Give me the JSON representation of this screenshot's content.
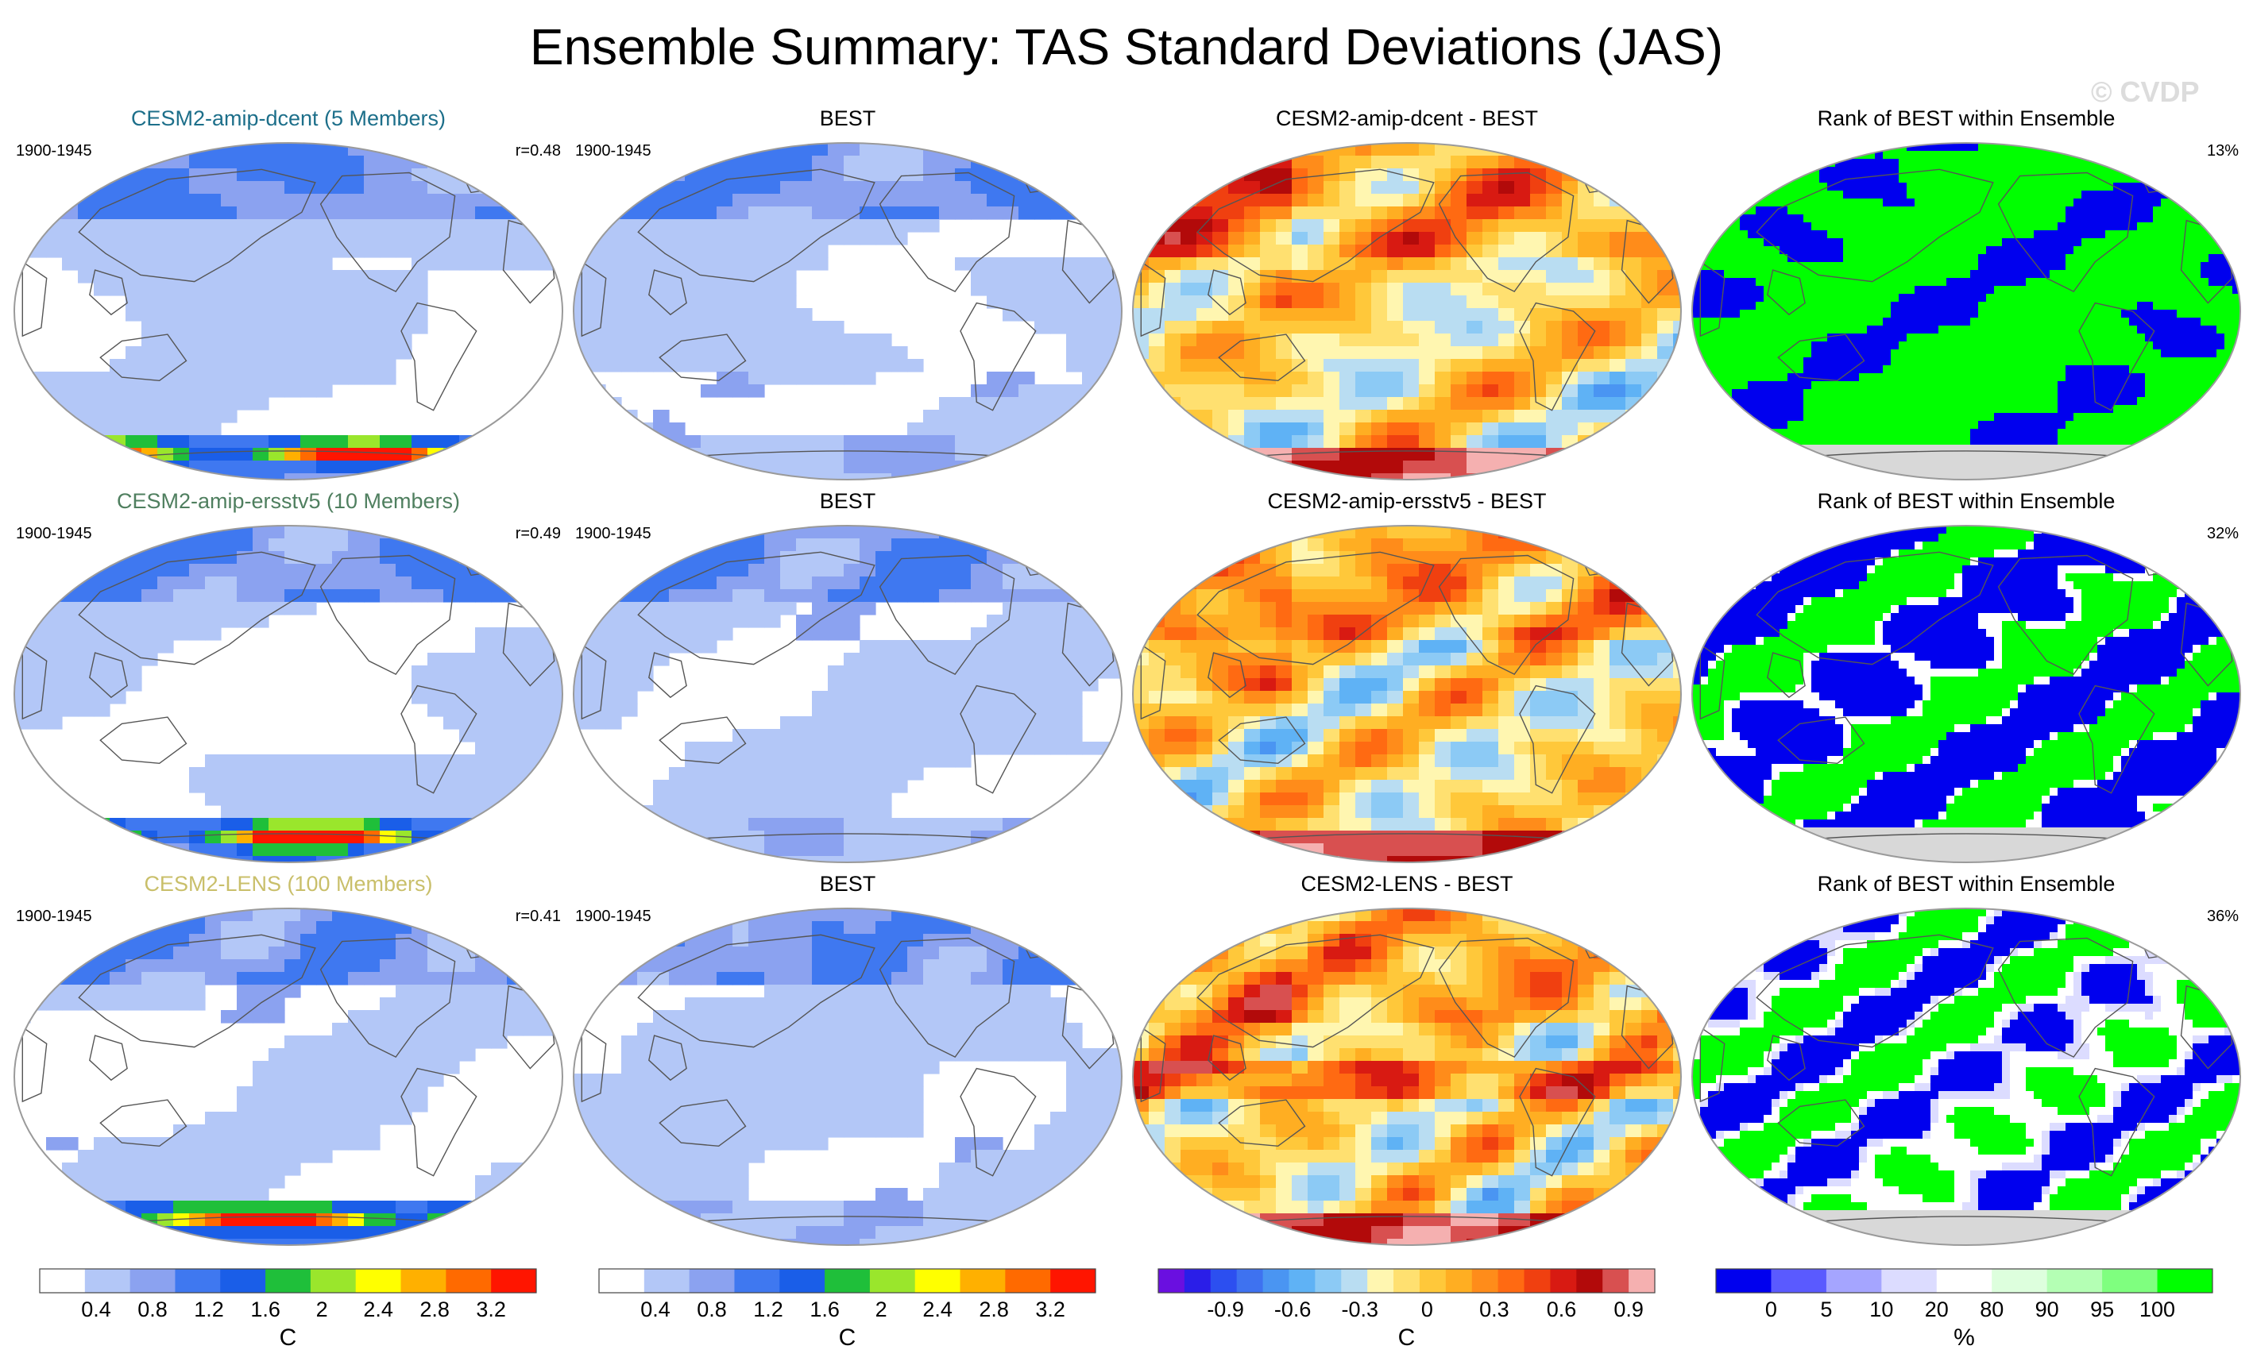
{
  "title": "Ensemble Summary: TAS Standard Deviations (JAS)",
  "watermark": "© CVDP",
  "colors": {
    "land": "#f2f2f2",
    "coast": "#555555",
    "antarctica": "#d8d8d8",
    "frame": "#9a9a9a",
    "model_titles": [
      "#1d6f8a",
      "#4f7f5f",
      "#c9bf6a"
    ]
  },
  "chart_data": [
    {
      "type": "heatmap",
      "panel": "model-row-1",
      "title": "CESM2-amip-dcent (5 Members)",
      "left_label": "1900-1945",
      "right_label": "r=0.48"
    },
    {
      "type": "heatmap",
      "panel": "best-row-1",
      "title": "BEST",
      "left_label": "1900-1945",
      "right_label": ""
    },
    {
      "type": "heatmap",
      "panel": "diff-row-1",
      "title": "CESM2-amip-dcent - BEST",
      "left_label": "",
      "right_label": ""
    },
    {
      "type": "heatmap",
      "panel": "rank-row-1",
      "title": "Rank of BEST within Ensemble",
      "left_label": "",
      "right_label": "13%"
    },
    {
      "type": "heatmap",
      "panel": "model-row-2",
      "title": "CESM2-amip-ersstv5 (10 Members)",
      "left_label": "1900-1945",
      "right_label": "r=0.49"
    },
    {
      "type": "heatmap",
      "panel": "best-row-2",
      "title": "BEST",
      "left_label": "1900-1945",
      "right_label": ""
    },
    {
      "type": "heatmap",
      "panel": "diff-row-2",
      "title": "CESM2-amip-ersstv5 - BEST",
      "left_label": "",
      "right_label": ""
    },
    {
      "type": "heatmap",
      "panel": "rank-row-2",
      "title": "Rank of BEST within Ensemble",
      "left_label": "",
      "right_label": "32%"
    },
    {
      "type": "heatmap",
      "panel": "model-row-3",
      "title": "CESM2-LENS (100 Members)",
      "left_label": "1900-1945",
      "right_label": "r=0.41"
    },
    {
      "type": "heatmap",
      "panel": "best-row-3",
      "title": "BEST",
      "left_label": "1900-1945",
      "right_label": ""
    },
    {
      "type": "heatmap",
      "panel": "diff-row-3",
      "title": "CESM2-LENS - BEST",
      "left_label": "",
      "right_label": ""
    },
    {
      "type": "heatmap",
      "panel": "rank-row-3",
      "title": "Rank of BEST within Ensemble",
      "left_label": "",
      "right_label": "36%"
    }
  ],
  "colorbars": [
    {
      "name": "sd-model",
      "unit": "C",
      "colors": [
        "#ffffff",
        "#b3c7f7",
        "#8ba2f0",
        "#3f78f0",
        "#1a5ee8",
        "#1fbf3a",
        "#9ae62c",
        "#ffff00",
        "#ffb000",
        "#ff6a00",
        "#ff1500"
      ],
      "ticks": [
        "0.4",
        "0.8",
        "1.2",
        "1.6",
        "2",
        "2.4",
        "2.8",
        "3.2"
      ]
    },
    {
      "name": "sd-best",
      "unit": "C",
      "colors": [
        "#ffffff",
        "#b3c7f7",
        "#8ba2f0",
        "#3f78f0",
        "#1a5ee8",
        "#1fbf3a",
        "#9ae62c",
        "#ffff00",
        "#ffb000",
        "#ff6a00",
        "#ff1500"
      ],
      "ticks": [
        "0.4",
        "0.8",
        "1.2",
        "1.6",
        "2",
        "2.4",
        "2.8",
        "3.2"
      ]
    },
    {
      "name": "diff",
      "unit": "C",
      "colors": [
        "#6a0fe0",
        "#2a1ee8",
        "#2c4ff0",
        "#3e72f0",
        "#4a95f2",
        "#5fb2f5",
        "#8ccaf5",
        "#b9ddf2",
        "#fff6b0",
        "#ffe070",
        "#ffc83a",
        "#ffae22",
        "#ff8c1a",
        "#ff6a12",
        "#f04010",
        "#d81a12",
        "#b20a0a",
        "#d85050",
        "#f5b0b0"
      ],
      "ticks": [
        "-0.9",
        "-0.6",
        "-0.3",
        "0",
        "0.3",
        "0.6",
        "0.9"
      ]
    },
    {
      "name": "rank",
      "unit": "%",
      "colors": [
        "#0000ee",
        "#5a5aff",
        "#a5a5ff",
        "#dcdcff",
        "#ffffff",
        "#ddffdd",
        "#b4ffb4",
        "#7fff7f",
        "#00ff00"
      ],
      "ticks": [
        "0",
        "5",
        "10",
        "20",
        "80",
        "90",
        "95",
        "100"
      ]
    }
  ]
}
